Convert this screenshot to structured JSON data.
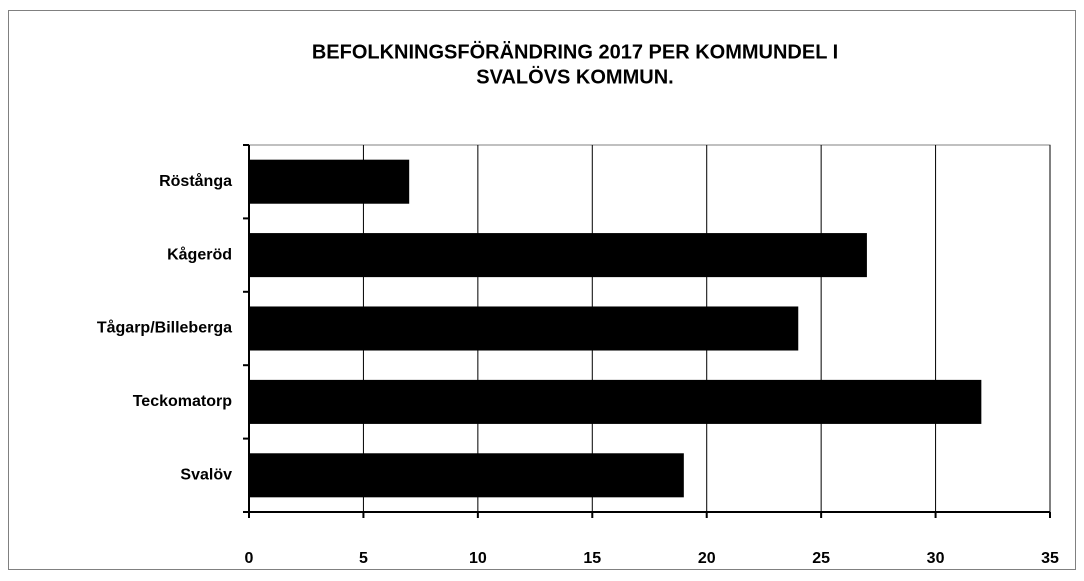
{
  "chart_data": {
    "type": "bar",
    "orientation": "horizontal",
    "title": [
      "BEFOLKNINGSFÖRÄNDRING 2017 PER KOMMUNDEL I",
      "SVALÖVS KOMMUN."
    ],
    "categories": [
      "Röstånga",
      "Kågeröd",
      "Tågarp/Billeberga",
      "Teckomatorp",
      "Svalöv"
    ],
    "values": [
      7,
      27,
      24,
      32,
      19
    ],
    "color": "#000000",
    "xlim": [
      0,
      35
    ],
    "xticks": [
      0,
      5,
      10,
      15,
      20,
      25,
      30,
      35
    ],
    "grid": true
  }
}
